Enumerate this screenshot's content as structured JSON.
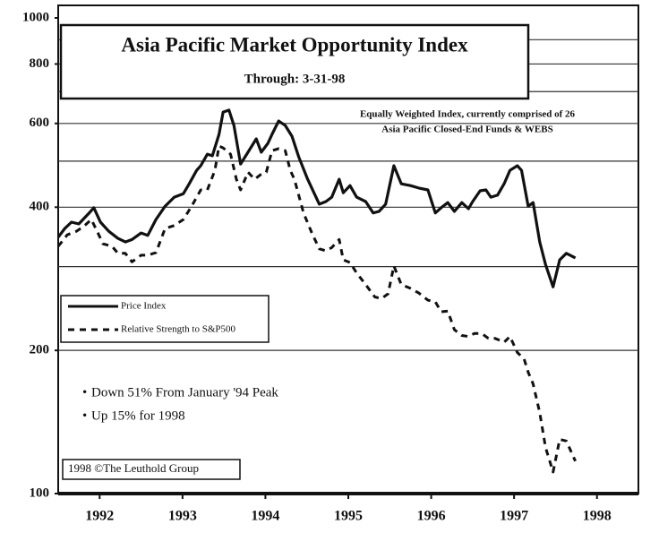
{
  "chart_data": {
    "type": "line",
    "title": "Asia Pacific Market Opportunity Index",
    "subtitle": "Through: 3-31-98",
    "annotation": [
      "Equally Weighted Index,  currently comprised of 26",
      "Asia Pacific Closed-End Funds & WEBS"
    ],
    "notes": [
      "Down 51% From January '94 Peak",
      "Up 15% for 1998"
    ],
    "copyright": "1998 ©The Leuthold Group",
    "log_scale": true,
    "ylim": [
      100,
      1000
    ],
    "yticks": [
      100,
      200,
      400,
      600,
      800,
      1000
    ],
    "y_gridlines": [
      200,
      300,
      400,
      500,
      600,
      700,
      800,
      900
    ],
    "xlim": [
      1992,
      1999
    ],
    "xticks": [
      {
        "value": 1992.5,
        "label": "1992"
      },
      {
        "value": 1993.5,
        "label": "1993"
      },
      {
        "value": 1994.5,
        "label": "1994"
      },
      {
        "value": 1995.5,
        "label": "1995"
      },
      {
        "value": 1996.5,
        "label": "1996"
      },
      {
        "value": 1997.5,
        "label": "1997"
      },
      {
        "value": 1998.5,
        "label": "1998"
      }
    ],
    "legend": "left",
    "series": [
      {
        "name": "Price Index",
        "color": "#111111",
        "style": "solid",
        "x": [
          1992.0,
          1992.08,
          1992.16,
          1992.25,
          1992.38,
          1992.43,
          1992.51,
          1992.61,
          1992.72,
          1992.81,
          1992.89,
          1993.0,
          1993.08,
          1993.18,
          1993.29,
          1993.4,
          1993.51,
          1993.58,
          1993.67,
          1993.72,
          1993.8,
          1993.86,
          1993.94,
          1993.99,
          1994.06,
          1994.12,
          1994.2,
          1994.29,
          1994.39,
          1994.45,
          1994.53,
          1994.58,
          1994.66,
          1994.74,
          1994.82,
          1994.9,
          1995.01,
          1995.15,
          1995.23,
          1995.3,
          1995.39,
          1995.44,
          1995.52,
          1995.6,
          1995.71,
          1995.8,
          1995.87,
          1995.95,
          1996.05,
          1996.14,
          1996.25,
          1996.35,
          1996.46,
          1996.55,
          1996.62,
          1996.7,
          1996.78,
          1996.87,
          1996.95,
          1997.0,
          1997.09,
          1997.16,
          1997.22,
          1997.3,
          1997.38,
          1997.45,
          1997.54,
          1997.59,
          1997.67,
          1997.73,
          1997.81,
          1997.88,
          1997.97,
          1998.05,
          1998.13,
          1998.24
        ],
        "values": [
          346,
          361,
          372,
          369,
          390,
          399,
          372,
          356,
          344,
          338,
          342,
          353,
          349,
          377,
          402,
          420,
          427,
          448,
          478,
          489,
          517,
          513,
          569,
          634,
          640,
          594,
          493,
          522,
          557,
          522,
          545,
          569,
          607,
          594,
          564,
          511,
          458,
          406,
          411,
          420,
          458,
          429,
          444,
          420,
          411,
          389,
          392,
          406,
          489,
          448,
          444,
          439,
          435,
          389,
          399,
          409,
          392,
          409,
          397,
          411,
          433,
          435,
          420,
          424,
          448,
          478,
          489,
          478,
          402,
          409,
          338,
          303,
          272,
          310,
          320,
          313
        ]
      },
      {
        "name": "Relative Strength to S&P500",
        "color": "#111111",
        "style": "dashed",
        "x": [
          1992.0,
          1992.11,
          1992.22,
          1992.32,
          1992.4,
          1992.48,
          1992.54,
          1992.65,
          1992.72,
          1992.81,
          1992.89,
          1993.0,
          1993.08,
          1993.18,
          1993.29,
          1993.4,
          1993.51,
          1993.61,
          1993.72,
          1993.8,
          1993.89,
          1993.94,
          1993.99,
          1994.08,
          1994.15,
          1994.2,
          1994.29,
          1994.37,
          1994.44,
          1994.51,
          1994.58,
          1994.66,
          1994.74,
          1994.8,
          1994.85,
          1994.96,
          1995.06,
          1995.15,
          1995.23,
          1995.3,
          1995.39,
          1995.44,
          1995.52,
          1995.6,
          1995.71,
          1995.82,
          1995.9,
          1995.98,
          1996.05,
          1996.14,
          1996.25,
          1996.35,
          1996.46,
          1996.55,
          1996.62,
          1996.7,
          1996.78,
          1996.87,
          1996.95,
          1997.02,
          1997.11,
          1997.19,
          1997.27,
          1997.38,
          1997.45,
          1997.54,
          1997.62,
          1997.67,
          1997.73,
          1997.81,
          1997.88,
          1997.97,
          1998.05,
          1998.13,
          1998.24
        ],
        "values": [
          331,
          350,
          356,
          366,
          377,
          353,
          335,
          331,
          320,
          320,
          307,
          317,
          317,
          321,
          361,
          366,
          377,
          402,
          435,
          435,
          478,
          538,
          533,
          517,
          458,
          435,
          474,
          458,
          468,
          474,
          526,
          531,
          526,
          478,
          458,
          389,
          353,
          327,
          324,
          329,
          342,
          310,
          306,
          291,
          275,
          259,
          257,
          263,
          301,
          275,
          270,
          264,
          255,
          253,
          241,
          242,
          221,
          215,
          214,
          217,
          217,
          212,
          212,
          208,
          214,
          198,
          192,
          180,
          170,
          148,
          125,
          111,
          130,
          129,
          117
        ]
      }
    ]
  }
}
